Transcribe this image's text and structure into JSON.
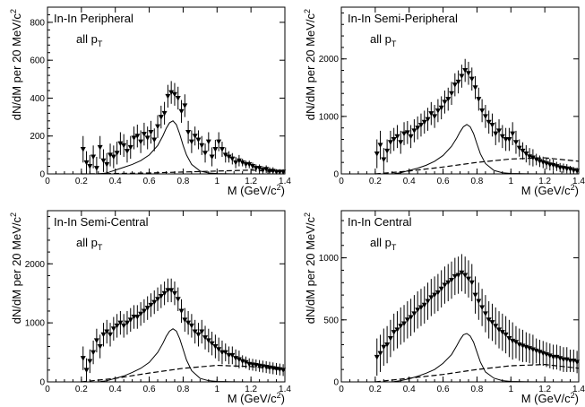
{
  "chart_data": [
    {
      "type": "scatter",
      "title": "In-In Peripheral",
      "subtitle_main": "all p",
      "subtitle_sub": "T",
      "ylabel_main": "dN/dM per 20 MeV/c",
      "ylabel_sup": "2",
      "xlabel_main": "M (GeV/c",
      "xlabel_sup": "2",
      "xlabel_close": ")",
      "xlim": [
        0,
        1.4
      ],
      "ylim": [
        0,
        880
      ],
      "xticks": [
        "0",
        "0.2",
        "0.4",
        "0.6",
        "0.8",
        "1",
        "1.2",
        "1.4"
      ],
      "xtick_values": [
        0,
        0.2,
        0.4,
        0.6,
        0.8,
        1.0,
        1.2,
        1.4
      ],
      "yticks": [
        "0",
        "200",
        "400",
        "600",
        "800"
      ],
      "ytick_values": [
        0,
        200,
        400,
        600,
        800
      ],
      "data": {
        "x": [
          0.21,
          0.23,
          0.25,
          0.27,
          0.29,
          0.31,
          0.33,
          0.35,
          0.37,
          0.39,
          0.41,
          0.43,
          0.45,
          0.47,
          0.49,
          0.51,
          0.53,
          0.55,
          0.57,
          0.59,
          0.61,
          0.63,
          0.65,
          0.67,
          0.69,
          0.71,
          0.73,
          0.75,
          0.77,
          0.79,
          0.81,
          0.83,
          0.85,
          0.87,
          0.89,
          0.91,
          0.93,
          0.95,
          0.97,
          0.99,
          1.01,
          1.03,
          1.05,
          1.07,
          1.09,
          1.11,
          1.13,
          1.15,
          1.17,
          1.19,
          1.21,
          1.23,
          1.25,
          1.27,
          1.29,
          1.31,
          1.33,
          1.35,
          1.37,
          1.39
        ],
        "y": [
          130,
          60,
          40,
          90,
          30,
          140,
          70,
          50,
          100,
          90,
          110,
          160,
          150,
          120,
          140,
          190,
          200,
          170,
          210,
          190,
          220,
          180,
          250,
          300,
          320,
          410,
          430,
          420,
          400,
          330,
          360,
          220,
          170,
          200,
          180,
          150,
          110,
          170,
          90,
          130,
          170,
          130,
          100,
          90,
          80,
          60,
          70,
          60,
          50,
          50,
          40,
          30,
          30,
          20,
          25,
          15,
          15,
          10,
          10,
          10
        ],
        "err": [
          70,
          60,
          60,
          60,
          60,
          60,
          60,
          60,
          60,
          60,
          60,
          60,
          60,
          60,
          60,
          60,
          60,
          60,
          60,
          60,
          60,
          60,
          60,
          60,
          60,
          60,
          60,
          60,
          60,
          60,
          60,
          60,
          60,
          50,
          50,
          50,
          50,
          50,
          50,
          50,
          50,
          40,
          40,
          30,
          30,
          30,
          30,
          20,
          20,
          20,
          20,
          20,
          20,
          20,
          20,
          20,
          20,
          15,
          15,
          15
        ]
      },
      "rho_curve": {
        "x": [
          0.3,
          0.35,
          0.4,
          0.45,
          0.5,
          0.55,
          0.6,
          0.65,
          0.68,
          0.7,
          0.72,
          0.74,
          0.76,
          0.78,
          0.8,
          0.82,
          0.85,
          0.9,
          0.95,
          1.0,
          1.1,
          1.2,
          1.3,
          1.4
        ],
        "y": [
          0,
          5,
          20,
          35,
          50,
          70,
          100,
          150,
          200,
          240,
          270,
          280,
          260,
          210,
          150,
          100,
          50,
          15,
          5,
          2,
          0,
          0,
          0,
          0
        ]
      },
      "background_curve": {
        "x": [
          0.2,
          0.4,
          0.6,
          0.8,
          1.0,
          1.2,
          1.4
        ],
        "y": [
          0,
          2,
          5,
          10,
          15,
          20,
          10
        ]
      }
    },
    {
      "type": "scatter",
      "title": "In-In Semi-Peripheral",
      "subtitle_main": "all p",
      "subtitle_sub": "T",
      "ylabel_main": "dN/dM per 20 MeV/c",
      "ylabel_sup": "2",
      "xlabel_main": "M (GeV/c",
      "xlabel_sup": "2",
      "xlabel_close": ")",
      "xlim": [
        0,
        1.4
      ],
      "ylim": [
        0,
        2900
      ],
      "xticks": [
        "0",
        "0.2",
        "0.4",
        "0.6",
        "0.8",
        "1",
        "1.2",
        "1.4"
      ],
      "xtick_values": [
        0,
        0.2,
        0.4,
        0.6,
        0.8,
        1.0,
        1.2,
        1.4
      ],
      "yticks": [
        "0",
        "1000",
        "2000"
      ],
      "ytick_values": [
        0,
        1000,
        2000
      ],
      "data": {
        "x": [
          0.21,
          0.23,
          0.25,
          0.27,
          0.29,
          0.31,
          0.33,
          0.35,
          0.37,
          0.39,
          0.41,
          0.43,
          0.45,
          0.47,
          0.49,
          0.51,
          0.53,
          0.55,
          0.57,
          0.59,
          0.61,
          0.63,
          0.65,
          0.67,
          0.69,
          0.71,
          0.73,
          0.75,
          0.77,
          0.79,
          0.81,
          0.83,
          0.85,
          0.87,
          0.89,
          0.91,
          0.93,
          0.95,
          0.97,
          0.99,
          1.01,
          1.03,
          1.05,
          1.07,
          1.09,
          1.11,
          1.13,
          1.15,
          1.17,
          1.19,
          1.21,
          1.23,
          1.25,
          1.27,
          1.29,
          1.31,
          1.33,
          1.35,
          1.37,
          1.39
        ],
        "y": [
          350,
          500,
          250,
          400,
          550,
          600,
          650,
          550,
          700,
          720,
          650,
          750,
          800,
          850,
          900,
          950,
          1050,
          1000,
          1100,
          1150,
          1250,
          1300,
          1400,
          1550,
          1600,
          1700,
          1800,
          1750,
          1650,
          1500,
          1300,
          1100,
          1000,
          900,
          850,
          700,
          750,
          650,
          600,
          600,
          700,
          550,
          450,
          400,
          350,
          300,
          280,
          250,
          220,
          200,
          180,
          160,
          150,
          130,
          110,
          100,
          90,
          80,
          60,
          50
        ],
        "err": [
          250,
          250,
          200,
          200,
          200,
          200,
          200,
          200,
          200,
          200,
          200,
          200,
          200,
          200,
          200,
          200,
          200,
          200,
          200,
          200,
          200,
          200,
          200,
          200,
          200,
          200,
          200,
          200,
          200,
          200,
          200,
          200,
          200,
          200,
          200,
          200,
          200,
          200,
          200,
          200,
          200,
          200,
          150,
          150,
          150,
          150,
          150,
          100,
          100,
          100,
          100,
          100,
          100,
          80,
          80,
          80,
          80,
          60,
          60,
          60
        ]
      },
      "rho_curve": {
        "x": [
          0.3,
          0.35,
          0.4,
          0.45,
          0.5,
          0.55,
          0.6,
          0.65,
          0.68,
          0.7,
          0.72,
          0.74,
          0.76,
          0.78,
          0.8,
          0.82,
          0.85,
          0.9,
          0.95,
          1.0,
          1.1,
          1.2,
          1.3,
          1.4
        ],
        "y": [
          0,
          20,
          60,
          100,
          150,
          220,
          320,
          480,
          620,
          730,
          820,
          860,
          820,
          700,
          520,
          350,
          180,
          60,
          20,
          8,
          2,
          0,
          0,
          0
        ]
      },
      "background_curve": {
        "x": [
          0.2,
          0.4,
          0.6,
          0.8,
          1.0,
          1.2,
          1.4
        ],
        "y": [
          0,
          50,
          120,
          200,
          260,
          280,
          220
        ]
      }
    },
    {
      "type": "scatter",
      "title": "In-In Semi-Central",
      "subtitle_main": "all p",
      "subtitle_sub": "T",
      "ylabel_main": "dN/dM per 20 MeV/c",
      "ylabel_sup": "2",
      "xlabel_main": "M (GeV/c",
      "xlabel_sup": "2",
      "xlabel_close": ")",
      "xlim": [
        0,
        1.4
      ],
      "ylim": [
        0,
        2900
      ],
      "xticks": [
        "0",
        "0.2",
        "0.4",
        "0.6",
        "0.8",
        "1",
        "1.2",
        "1.4"
      ],
      "xtick_values": [
        0,
        0.2,
        0.4,
        0.6,
        0.8,
        1.0,
        1.2,
        1.4
      ],
      "yticks": [
        "0",
        "1000",
        "2000"
      ],
      "ytick_values": [
        0,
        1000,
        2000
      ],
      "data": {
        "x": [
          0.21,
          0.23,
          0.25,
          0.27,
          0.29,
          0.31,
          0.33,
          0.35,
          0.37,
          0.39,
          0.41,
          0.43,
          0.45,
          0.47,
          0.49,
          0.51,
          0.53,
          0.55,
          0.57,
          0.59,
          0.61,
          0.63,
          0.65,
          0.67,
          0.69,
          0.71,
          0.73,
          0.75,
          0.77,
          0.79,
          0.81,
          0.83,
          0.85,
          0.87,
          0.89,
          0.91,
          0.93,
          0.95,
          0.97,
          0.99,
          1.01,
          1.03,
          1.05,
          1.07,
          1.09,
          1.11,
          1.13,
          1.15,
          1.17,
          1.19,
          1.21,
          1.23,
          1.25,
          1.27,
          1.29,
          1.31,
          1.33,
          1.35,
          1.37,
          1.39
        ],
        "y": [
          400,
          200,
          350,
          500,
          700,
          600,
          800,
          850,
          800,
          900,
          950,
          1000,
          950,
          1000,
          1050,
          1100,
          1100,
          1150,
          1200,
          1250,
          1300,
          1350,
          1400,
          1450,
          1500,
          1550,
          1550,
          1500,
          1400,
          1200,
          1050,
          1000,
          950,
          850,
          800,
          850,
          750,
          700,
          650,
          600,
          550,
          500,
          500,
          450,
          450,
          400,
          380,
          350,
          330,
          300,
          290,
          280,
          270,
          260,
          250,
          240,
          230,
          220,
          210,
          200
        ],
        "err": [
          200,
          200,
          200,
          200,
          200,
          200,
          200,
          200,
          200,
          200,
          200,
          200,
          200,
          200,
          200,
          200,
          200,
          200,
          200,
          200,
          200,
          200,
          200,
          200,
          200,
          200,
          200,
          200,
          200,
          200,
          200,
          200,
          200,
          200,
          200,
          200,
          200,
          200,
          200,
          200,
          200,
          200,
          150,
          150,
          150,
          150,
          150,
          100,
          100,
          100,
          100,
          100,
          100,
          100,
          100,
          100,
          100,
          100,
          100,
          100
        ]
      },
      "rho_curve": {
        "x": [
          0.3,
          0.35,
          0.4,
          0.45,
          0.5,
          0.55,
          0.6,
          0.65,
          0.68,
          0.7,
          0.72,
          0.74,
          0.76,
          0.78,
          0.8,
          0.82,
          0.85,
          0.9,
          0.95,
          1.0,
          1.1,
          1.2,
          1.3,
          1.4
        ],
        "y": [
          0,
          20,
          60,
          100,
          160,
          230,
          330,
          500,
          650,
          770,
          860,
          900,
          860,
          730,
          550,
          370,
          190,
          60,
          20,
          8,
          2,
          0,
          0,
          0
        ]
      },
      "background_curve": {
        "x": [
          0.2,
          0.4,
          0.6,
          0.8,
          1.0,
          1.2,
          1.4
        ],
        "y": [
          0,
          60,
          150,
          230,
          280,
          260,
          200
        ]
      }
    },
    {
      "type": "scatter",
      "title": "In-In Central",
      "subtitle_main": "all p",
      "subtitle_sub": "T",
      "ylabel_main": "dN/dM per 20 MeV/c",
      "ylabel_sup": "2",
      "xlabel_main": "M (GeV/c",
      "xlabel_sup": "2",
      "xlabel_close": ")",
      "xlim": [
        0,
        1.4
      ],
      "ylim": [
        0,
        1380
      ],
      "xticks": [
        "0",
        "0.2",
        "0.4",
        "0.6",
        "0.8",
        "1",
        "1.2",
        "1.4"
      ],
      "xtick_values": [
        0,
        0.2,
        0.4,
        0.6,
        0.8,
        1.0,
        1.2,
        1.4
      ],
      "yticks": [
        "0",
        "500",
        "1000"
      ],
      "ytick_values": [
        0,
        500,
        1000
      ],
      "data": {
        "x": [
          0.21,
          0.23,
          0.25,
          0.27,
          0.29,
          0.31,
          0.33,
          0.35,
          0.37,
          0.39,
          0.41,
          0.43,
          0.45,
          0.47,
          0.49,
          0.51,
          0.53,
          0.55,
          0.57,
          0.59,
          0.61,
          0.63,
          0.65,
          0.67,
          0.69,
          0.71,
          0.73,
          0.75,
          0.77,
          0.79,
          0.81,
          0.83,
          0.85,
          0.87,
          0.89,
          0.91,
          0.93,
          0.95,
          0.97,
          0.99,
          1.01,
          1.03,
          1.05,
          1.07,
          1.09,
          1.11,
          1.13,
          1.15,
          1.17,
          1.19,
          1.21,
          1.23,
          1.25,
          1.27,
          1.29,
          1.31,
          1.33,
          1.35,
          1.37,
          1.39
        ],
        "y": [
          200,
          230,
          280,
          300,
          350,
          400,
          420,
          450,
          470,
          500,
          520,
          550,
          580,
          600,
          620,
          650,
          680,
          700,
          720,
          750,
          780,
          800,
          820,
          850,
          860,
          880,
          860,
          830,
          800,
          700,
          650,
          600,
          550,
          500,
          480,
          450,
          420,
          400,
          380,
          350,
          330,
          320,
          300,
          290,
          280,
          270,
          260,
          250,
          240,
          230,
          220,
          210,
          200,
          200,
          190,
          180,
          180,
          170,
          170,
          160
        ],
        "err": [
          150,
          150,
          150,
          150,
          150,
          150,
          150,
          150,
          150,
          150,
          150,
          150,
          150,
          150,
          150,
          150,
          150,
          150,
          150,
          150,
          150,
          150,
          150,
          150,
          150,
          150,
          150,
          150,
          150,
          150,
          150,
          150,
          150,
          150,
          150,
          150,
          150,
          150,
          150,
          150,
          150,
          130,
          130,
          130,
          120,
          120,
          120,
          100,
          100,
          100,
          100,
          100,
          100,
          100,
          100,
          100,
          100,
          90,
          90,
          90
        ]
      },
      "rho_curve": {
        "x": [
          0.3,
          0.35,
          0.4,
          0.45,
          0.5,
          0.55,
          0.6,
          0.65,
          0.68,
          0.7,
          0.72,
          0.74,
          0.76,
          0.78,
          0.8,
          0.82,
          0.85,
          0.9,
          0.95,
          1.0,
          1.1,
          1.2,
          1.3,
          1.4
        ],
        "y": [
          0,
          10,
          25,
          45,
          70,
          100,
          150,
          220,
          290,
          340,
          380,
          390,
          370,
          320,
          240,
          160,
          80,
          30,
          10,
          4,
          1,
          0,
          0,
          0
        ]
      },
      "background_curve": {
        "x": [
          0.2,
          0.4,
          0.6,
          0.8,
          1.0,
          1.2,
          1.4
        ],
        "y": [
          0,
          30,
          60,
          100,
          130,
          140,
          110
        ]
      }
    }
  ]
}
